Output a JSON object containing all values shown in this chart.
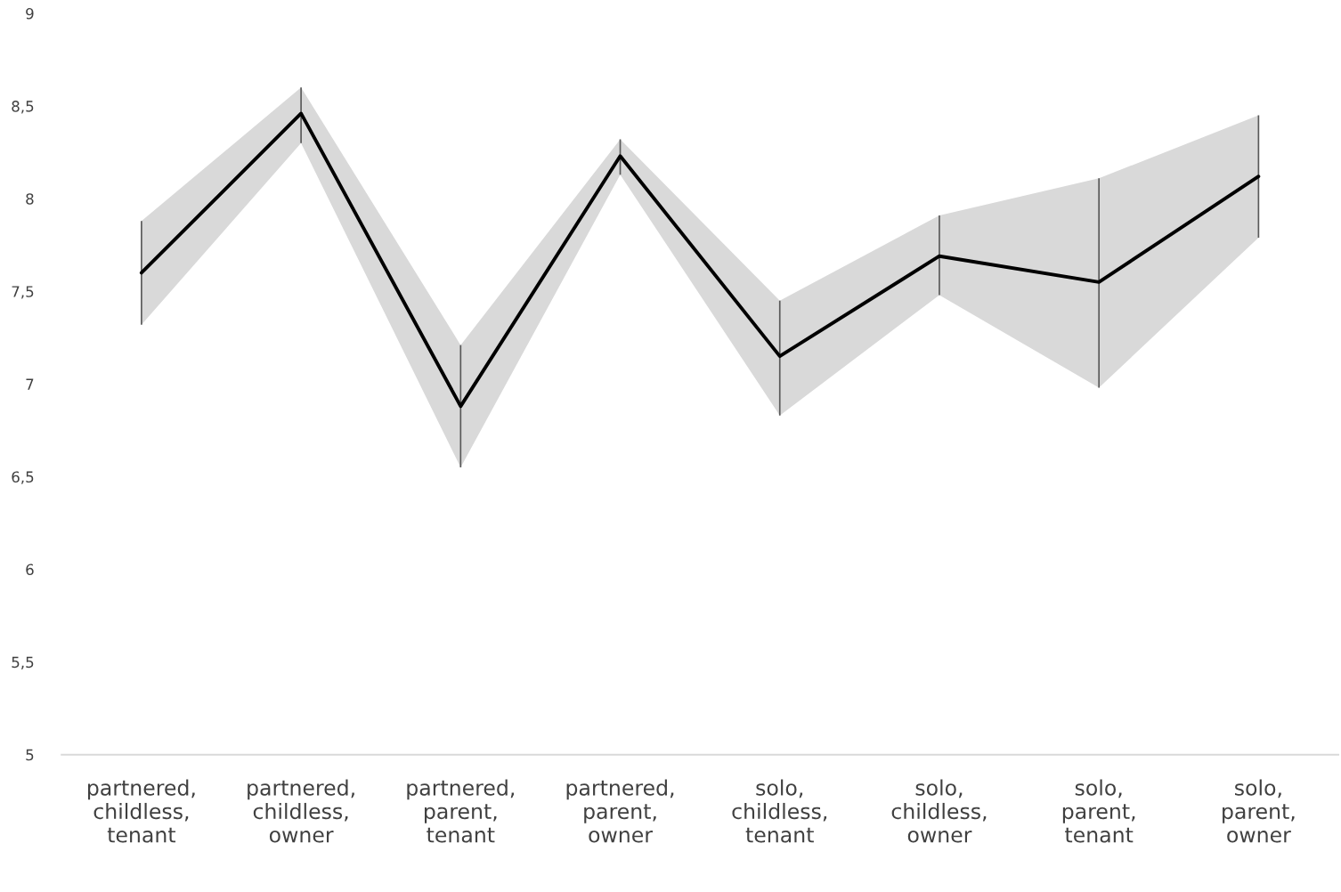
{
  "chart_data": {
    "type": "line",
    "categories": [
      "partnered,\nchildless,\ntenant",
      "partnered,\nchildless,\nowner",
      "partnered,\nparent,\ntenant",
      "partnered,\nparent,\nowner",
      "solo,\nchildless,\ntenant",
      "solo,\nchildless,\nowner",
      "solo,\nparent,\ntenant",
      "solo,\nparent,\nowner"
    ],
    "series": [
      {
        "color": "#000000",
        "values": [
          7.6,
          8.46,
          6.88,
          8.23,
          7.15,
          7.69,
          7.55,
          8.12
        ],
        "lower": [
          7.32,
          8.3,
          6.55,
          8.13,
          6.83,
          7.48,
          6.98,
          7.79
        ],
        "upper": [
          7.88,
          8.6,
          7.21,
          8.32,
          7.45,
          7.91,
          8.11,
          8.45
        ],
        "errors": [
          [
            7.32,
            7.88
          ],
          [
            8.3,
            8.6
          ],
          [
            6.55,
            7.21
          ],
          [
            8.13,
            8.32
          ],
          [
            6.83,
            7.45
          ],
          [
            7.48,
            7.91
          ],
          [
            6.98,
            8.11
          ],
          [
            7.79,
            8.45
          ]
        ]
      }
    ],
    "ylim": [
      5,
      9
    ],
    "yticks": [
      5,
      {
        "value": 5.5,
        "label": "5,5"
      },
      6,
      {
        "value": 6.5,
        "label": "6,5"
      },
      7,
      {
        "value": 7.5,
        "label": "7,5"
      },
      8,
      {
        "value": 8.5,
        "label": "8,5"
      },
      9
    ],
    "grid": false,
    "marker": "none",
    "line_style": "solid"
  }
}
